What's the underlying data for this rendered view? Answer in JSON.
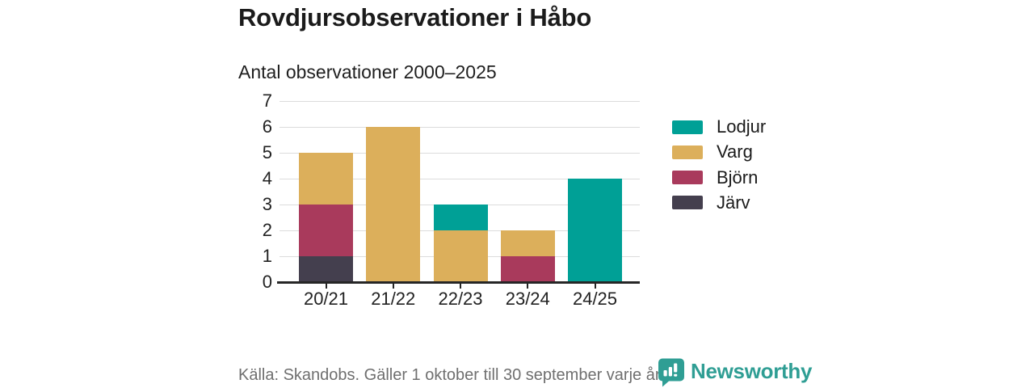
{
  "header": {
    "title": "Rovdjursobservationer i Håbo",
    "subtitle": "Antal observationer 2000–2025"
  },
  "chart_data": {
    "type": "bar",
    "stacked": true,
    "title": "Rovdjursobservationer i Håbo",
    "subtitle": "Antal observationer 2000–2025",
    "xlabel": "",
    "ylabel": "",
    "categories": [
      "20/21",
      "21/22",
      "22/23",
      "23/24",
      "24/25"
    ],
    "series": [
      {
        "name": "Lodjur",
        "color": "#00a096",
        "values": [
          0,
          0,
          1,
          0,
          4
        ]
      },
      {
        "name": "Varg",
        "color": "#dcaf5b",
        "values": [
          2,
          6,
          2,
          1,
          0
        ]
      },
      {
        "name": "Björn",
        "color": "#a93a5c",
        "values": [
          2,
          0,
          0,
          1,
          0
        ]
      },
      {
        "name": "Järv",
        "color": "#443f4e",
        "values": [
          1,
          0,
          0,
          0,
          0
        ]
      }
    ],
    "stack_order_bottom_to_top": [
      "Järv",
      "Björn",
      "Varg",
      "Lodjur"
    ],
    "totals_per_category": [
      5,
      6,
      3,
      2,
      4
    ],
    "yticks": [
      0,
      1,
      2,
      3,
      4,
      5,
      6,
      7
    ],
    "ylim": [
      0,
      7
    ],
    "grid": true,
    "legend_position": "right"
  },
  "footer": {
    "source": "Källa: Skandobs. Gäller 1 oktober till 30 september varje år.",
    "brand": "Newsworthy"
  },
  "colors": {
    "grid": "#dcdcdc",
    "axis": "#262626",
    "text": "#1b1b1b",
    "muted_text": "#6f6f6f",
    "brand_teal": "#2f9e94",
    "background": "#ffffff"
  }
}
